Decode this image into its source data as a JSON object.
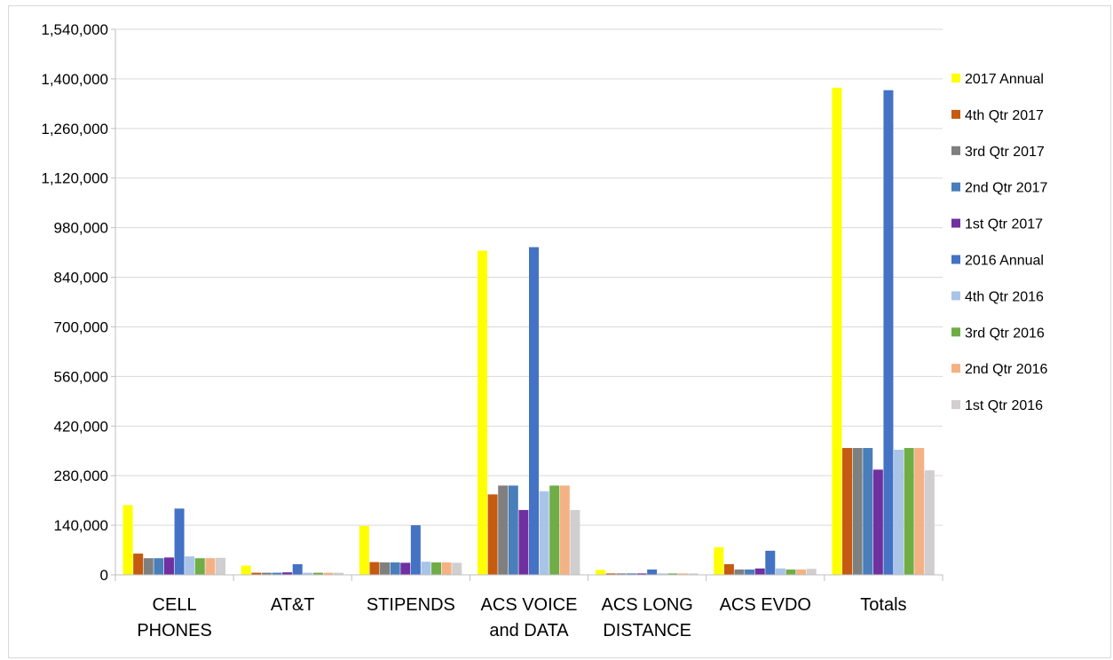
{
  "chart_data": {
    "type": "bar",
    "categories": [
      "CELL\nPHONES",
      "AT&T",
      "STIPENDS",
      "ACS VOICE\nand DATA",
      "ACS LONG\nDISTANCE",
      "ACS EVDO",
      "Totals"
    ],
    "series": [
      {
        "name": "2017 Annual",
        "color": "#FFFF00",
        "values": [
          197000,
          26000,
          138000,
          915000,
          14000,
          78000,
          1375000
        ]
      },
      {
        "name": "4th Qtr 2017",
        "color": "#C55A11",
        "values": [
          60000,
          6000,
          36000,
          227000,
          4000,
          30000,
          358000
        ]
      },
      {
        "name": "3rd Qtr 2017",
        "color": "#7F7F7F",
        "values": [
          47000,
          6000,
          35000,
          252000,
          4000,
          15000,
          358000
        ]
      },
      {
        "name": "2nd Qtr 2017",
        "color": "#4A7EBB",
        "values": [
          47000,
          6000,
          35000,
          252000,
          4000,
          15000,
          358000
        ]
      },
      {
        "name": "1st Qtr 2017",
        "color": "#7030A0",
        "values": [
          49000,
          7000,
          34000,
          183000,
          4000,
          18000,
          297000
        ]
      },
      {
        "name": "2016 Annual",
        "color": "#4472C4",
        "values": [
          187000,
          30000,
          140000,
          925000,
          15000,
          68000,
          1368000
        ]
      },
      {
        "name": "4th Qtr 2016",
        "color": "#A9C4E8",
        "values": [
          52000,
          6000,
          37000,
          236000,
          4000,
          18000,
          353000
        ]
      },
      {
        "name": "3rd Qtr 2016",
        "color": "#70AD47",
        "values": [
          47000,
          6000,
          35000,
          252000,
          4000,
          15000,
          358000
        ]
      },
      {
        "name": "2nd Qtr 2016",
        "color": "#F4B183",
        "values": [
          47000,
          6000,
          35000,
          252000,
          4000,
          15000,
          358000
        ]
      },
      {
        "name": "1st Qtr 2016",
        "color": "#D0CECE",
        "values": [
          48000,
          6000,
          34000,
          183000,
          4000,
          17000,
          295000
        ]
      }
    ],
    "ylim": [
      0,
      1540000
    ],
    "yticks": [
      "0",
      "140,000",
      "280,000",
      "420,000",
      "560,000",
      "700,000",
      "840,000",
      "980,000",
      "1,120,000",
      "1,260,000",
      "1,400,000",
      "1,540,000"
    ],
    "grid": true,
    "legend": "right"
  }
}
